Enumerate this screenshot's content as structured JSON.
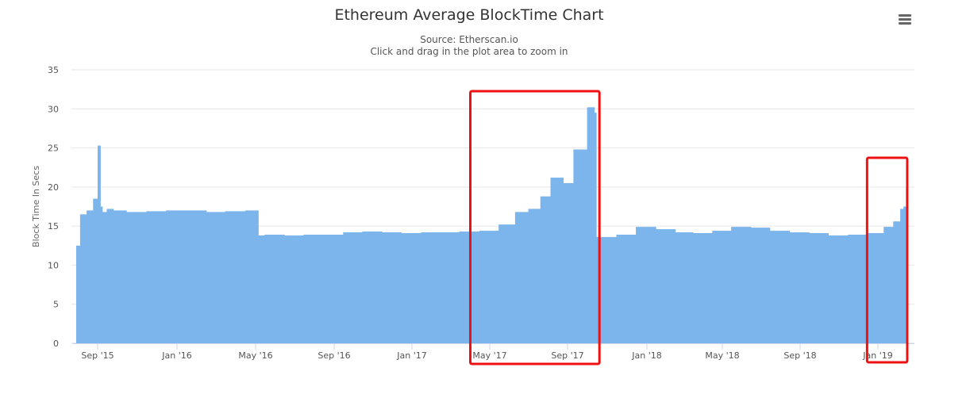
{
  "header": {
    "menu_icon": "hamburger-menu-icon"
  },
  "chart_data": {
    "type": "bar",
    "title": "Ethereum Average BlockTime Chart",
    "subtitle_lines": [
      "Source: Etherscan.io",
      "Click and drag in the plot area to zoom in"
    ],
    "ylabel": "Block Time In Secs",
    "xlabel": "",
    "ylim": [
      0,
      35
    ],
    "y_ticks": [
      "0",
      "5",
      "10",
      "15",
      "20",
      "25",
      "30",
      "35"
    ],
    "x_tick_labels": [
      "Sep '15",
      "Jan '16",
      "May '16",
      "Sep '16",
      "Jan '17",
      "May '17",
      "Sep '17",
      "Jan '18",
      "May '18",
      "Sep '18",
      "Jan '19"
    ],
    "x_tick_dates": [
      "2015-09-01",
      "2016-01-01",
      "2016-05-01",
      "2016-09-01",
      "2017-01-01",
      "2017-05-01",
      "2017-09-01",
      "2018-01-01",
      "2018-05-01",
      "2018-09-01",
      "2019-01-01"
    ],
    "grid": true,
    "legend": "none",
    "bar_color": "#7cb5ec",
    "series": [
      {
        "x": [
          "2015-07-30",
          "2015-08-05",
          "2015-08-15",
          "2015-08-25",
          "2015-09-01",
          "2015-09-05",
          "2015-09-08",
          "2015-09-15",
          "2015-09-25",
          "2015-10-15",
          "2015-11-15",
          "2015-12-15",
          "2016-01-15",
          "2016-02-15",
          "2016-03-15",
          "2016-04-15",
          "2016-05-05",
          "2016-05-15",
          "2016-06-15",
          "2016-07-15",
          "2016-08-15",
          "2016-09-15",
          "2016-10-15",
          "2016-11-15",
          "2016-12-15",
          "2017-01-15",
          "2017-02-15",
          "2017-03-15",
          "2017-04-15",
          "2017-05-15",
          "2017-06-10",
          "2017-07-01",
          "2017-07-20",
          "2017-08-05",
          "2017-08-25",
          "2017-09-10",
          "2017-10-01",
          "2017-10-12",
          "2017-10-15",
          "2017-11-15",
          "2017-12-15",
          "2018-01-15",
          "2018-02-15",
          "2018-03-15",
          "2018-04-15",
          "2018-05-15",
          "2018-06-15",
          "2018-07-15",
          "2018-08-15",
          "2018-09-15",
          "2018-10-15",
          "2018-11-15",
          "2018-12-15",
          "2019-01-10",
          "2019-01-25",
          "2019-02-05",
          "2019-02-10",
          "2019-02-14"
        ],
        "values": [
          12.5,
          16.5,
          17.0,
          18.5,
          25.3,
          17.5,
          16.8,
          17.2,
          17.0,
          16.8,
          16.9,
          17.0,
          17.0,
          16.8,
          16.9,
          17.0,
          13.8,
          13.9,
          13.8,
          13.9,
          13.9,
          14.2,
          14.3,
          14.2,
          14.1,
          14.2,
          14.2,
          14.3,
          14.4,
          15.2,
          16.8,
          17.2,
          18.8,
          21.2,
          20.5,
          24.8,
          30.2,
          29.5,
          13.6,
          13.9,
          14.9,
          14.6,
          14.2,
          14.1,
          14.4,
          14.9,
          14.8,
          14.4,
          14.2,
          14.1,
          13.8,
          13.9,
          14.1,
          14.9,
          15.6,
          17.2,
          17.5,
          20.0
        ]
      }
    ]
  },
  "annotations": {
    "highlight_color": "#ee1111",
    "highlight_boxes": [
      {
        "x_start": "2017-04-01",
        "x_end": "2017-10-20"
      },
      {
        "x_start": "2018-12-15",
        "x_end": "2019-02-16"
      }
    ]
  }
}
